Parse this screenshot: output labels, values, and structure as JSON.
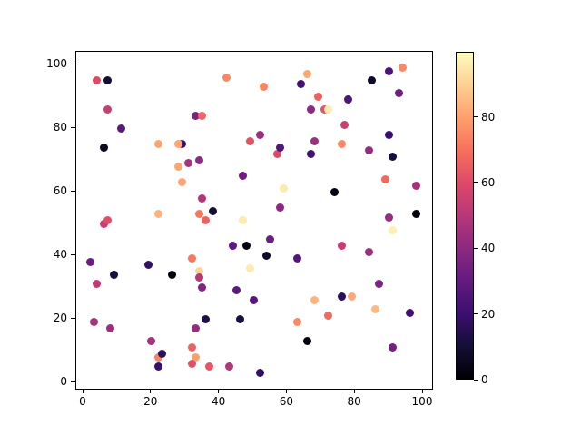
{
  "figure": {
    "background_color": "#ffffff",
    "spine_color": "#000000",
    "tick_color": "#000000",
    "title": ""
  },
  "chart_data": {
    "type": "scatter",
    "title": "",
    "xlabel": "",
    "ylabel": "",
    "xlim": [
      -2,
      103
    ],
    "ylim": [
      -3,
      104
    ],
    "x_ticks": [
      0,
      20,
      40,
      60,
      80,
      100
    ],
    "y_ticks": [
      0,
      20,
      40,
      60,
      80,
      100
    ],
    "grid": false,
    "marker_diameter_px": 9,
    "colormap": "magma",
    "colormap_stops": [
      "#000004",
      "#140e36",
      "#3b0f70",
      "#641a80",
      "#8c2981",
      "#b73779",
      "#de4968",
      "#f7705c",
      "#fe9f6d",
      "#fecf92",
      "#fcfdbf"
    ],
    "colorbar": {
      "ticks": [
        0,
        20,
        40,
        60,
        80
      ],
      "vmin": 0,
      "vmax": 99.8,
      "orientation": "vertical",
      "position": "right"
    },
    "points_format": [
      "x",
      "y",
      "color_value"
    ],
    "points": [
      [
        4,
        95,
        60
      ],
      [
        7,
        95,
        10
      ],
      [
        7,
        86,
        54
      ],
      [
        11,
        80,
        28
      ],
      [
        6,
        74,
        6
      ],
      [
        42,
        96,
        75
      ],
      [
        53,
        93,
        74
      ],
      [
        66,
        97,
        81
      ],
      [
        64,
        94,
        22
      ],
      [
        69,
        90,
        66
      ],
      [
        67,
        86,
        40
      ],
      [
        71,
        86,
        62
      ],
      [
        72,
        86,
        96
      ],
      [
        78,
        89,
        25
      ],
      [
        77,
        81,
        55
      ],
      [
        85,
        95,
        8
      ],
      [
        90,
        98,
        24
      ],
      [
        93,
        91,
        33
      ],
      [
        94,
        99,
        75
      ],
      [
        33,
        84,
        36
      ],
      [
        35,
        84,
        67
      ],
      [
        22,
        75,
        81
      ],
      [
        29,
        75,
        20
      ],
      [
        28,
        75,
        81
      ],
      [
        28,
        68,
        81
      ],
      [
        31,
        69,
        46
      ],
      [
        34,
        70,
        40
      ],
      [
        47,
        65,
        33
      ],
      [
        49,
        76,
        62
      ],
      [
        52,
        78,
        44
      ],
      [
        57,
        72,
        60
      ],
      [
        58,
        74,
        25
      ],
      [
        67,
        72,
        22
      ],
      [
        68,
        76,
        44
      ],
      [
        76,
        75,
        75
      ],
      [
        84,
        73,
        42
      ],
      [
        90,
        78,
        20
      ],
      [
        91,
        71,
        11
      ],
      [
        89,
        64,
        68
      ],
      [
        98,
        62,
        46
      ],
      [
        29,
        63,
        81
      ],
      [
        59,
        61,
        96
      ],
      [
        74,
        60,
        3
      ],
      [
        22,
        53,
        84
      ],
      [
        34,
        53,
        71
      ],
      [
        35,
        58,
        49
      ],
      [
        36,
        51,
        66
      ],
      [
        38,
        54,
        10
      ],
      [
        6,
        50,
        54
      ],
      [
        7,
        51,
        61
      ],
      [
        47,
        51,
        96
      ],
      [
        58,
        55,
        40
      ],
      [
        91,
        48,
        97
      ],
      [
        90,
        52,
        42
      ],
      [
        98,
        53,
        1
      ],
      [
        44,
        43,
        29
      ],
      [
        48,
        43,
        3
      ],
      [
        55,
        45,
        32
      ],
      [
        54,
        40,
        7
      ],
      [
        76,
        43,
        53
      ],
      [
        84,
        41,
        44
      ],
      [
        2,
        38,
        32
      ],
      [
        9,
        34,
        12
      ],
      [
        19,
        37,
        18
      ],
      [
        26,
        34,
        2
      ],
      [
        4,
        31,
        52
      ],
      [
        32,
        39,
        71
      ],
      [
        34,
        35,
        91
      ],
      [
        34,
        33,
        50
      ],
      [
        35,
        30,
        37
      ],
      [
        45,
        29,
        28
      ],
      [
        50,
        26,
        27
      ],
      [
        49,
        36,
        96
      ],
      [
        63,
        39,
        26
      ],
      [
        87,
        31,
        36
      ],
      [
        76,
        27,
        16
      ],
      [
        79,
        27,
        82
      ],
      [
        68,
        26,
        84
      ],
      [
        86,
        23,
        85
      ],
      [
        96,
        22,
        22
      ],
      [
        72,
        21,
        68
      ],
      [
        63,
        19,
        75
      ],
      [
        36,
        20,
        13
      ],
      [
        46,
        20,
        12
      ],
      [
        3,
        19,
        46
      ],
      [
        8,
        17,
        44
      ],
      [
        20,
        13,
        46
      ],
      [
        33,
        17,
        42
      ],
      [
        66,
        13,
        2
      ],
      [
        91,
        11,
        34
      ],
      [
        22,
        8,
        74
      ],
      [
        23,
        9,
        17
      ],
      [
        22,
        5,
        20
      ],
      [
        32,
        11,
        66
      ],
      [
        33,
        8,
        80
      ],
      [
        32,
        6,
        62
      ],
      [
        37,
        5,
        63
      ],
      [
        43,
        5,
        49
      ],
      [
        52,
        3,
        18
      ]
    ]
  }
}
